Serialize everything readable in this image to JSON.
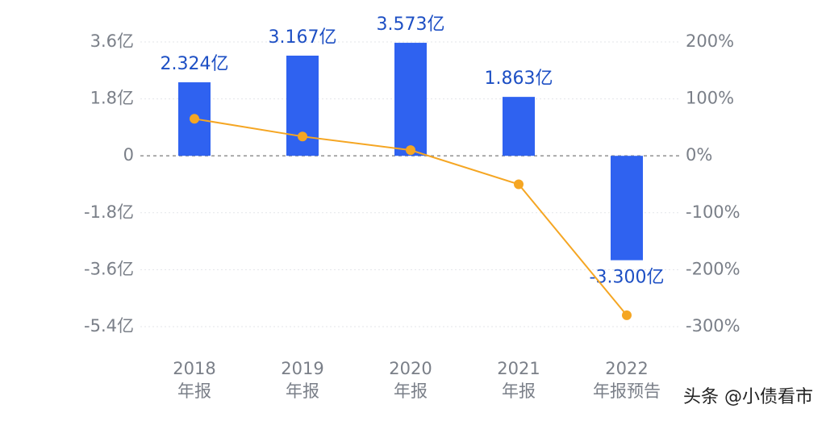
{
  "chart_data": {
    "type": "combo",
    "categories": [
      [
        "2018",
        "年报"
      ],
      [
        "2019",
        "年报"
      ],
      [
        "2020",
        "年报"
      ],
      [
        "2021",
        "年报"
      ],
      [
        "2022",
        "年报预告"
      ]
    ],
    "series": [
      {
        "type": "bar",
        "color": "#2f62f0",
        "values": [
          2.324,
          3.167,
          3.573,
          1.863,
          -3.3
        ],
        "value_labels": [
          "2.324亿",
          "3.167亿",
          "3.573亿",
          "1.863亿",
          "-3.300亿"
        ]
      },
      {
        "type": "line",
        "color": "#f5a623",
        "axis": "y2",
        "values": [
          65,
          34,
          10,
          -50,
          -280
        ]
      }
    ],
    "ylim": [
      -5.4,
      3.6
    ],
    "yticks": [
      {
        "value": 3.6,
        "label": "3.6亿"
      },
      {
        "value": 1.8,
        "label": "1.8亿"
      },
      0,
      {
        "value": -1.8,
        "label": "-1.8亿"
      },
      {
        "value": -3.6,
        "label": "-3.6亿"
      },
      {
        "value": -5.4,
        "label": "-5.4亿"
      }
    ],
    "y2lim": [
      -300,
      200
    ],
    "y2ticks": [
      {
        "value": 200,
        "label": "200%"
      },
      {
        "value": 100,
        "label": "100%"
      },
      {
        "value": 0,
        "label": "0%"
      },
      {
        "value": -100,
        "label": "-100%"
      },
      {
        "value": -200,
        "label": "-200%"
      },
      {
        "value": -300,
        "label": "-300%"
      }
    ],
    "grid": true,
    "watermark": "头条 @小债看市"
  }
}
